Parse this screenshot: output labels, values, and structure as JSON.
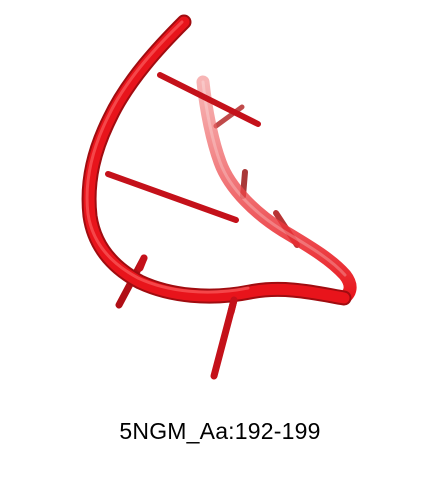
{
  "caption": "5NGM_Aa:192-199",
  "colors": {
    "backbone": "#e8141b",
    "backbone_shadow": "#a00c10",
    "backbone_highlight": "#ff6a6a",
    "base_stick": "#c4111a",
    "background": "#ffffff",
    "caption_text": "#000000"
  }
}
